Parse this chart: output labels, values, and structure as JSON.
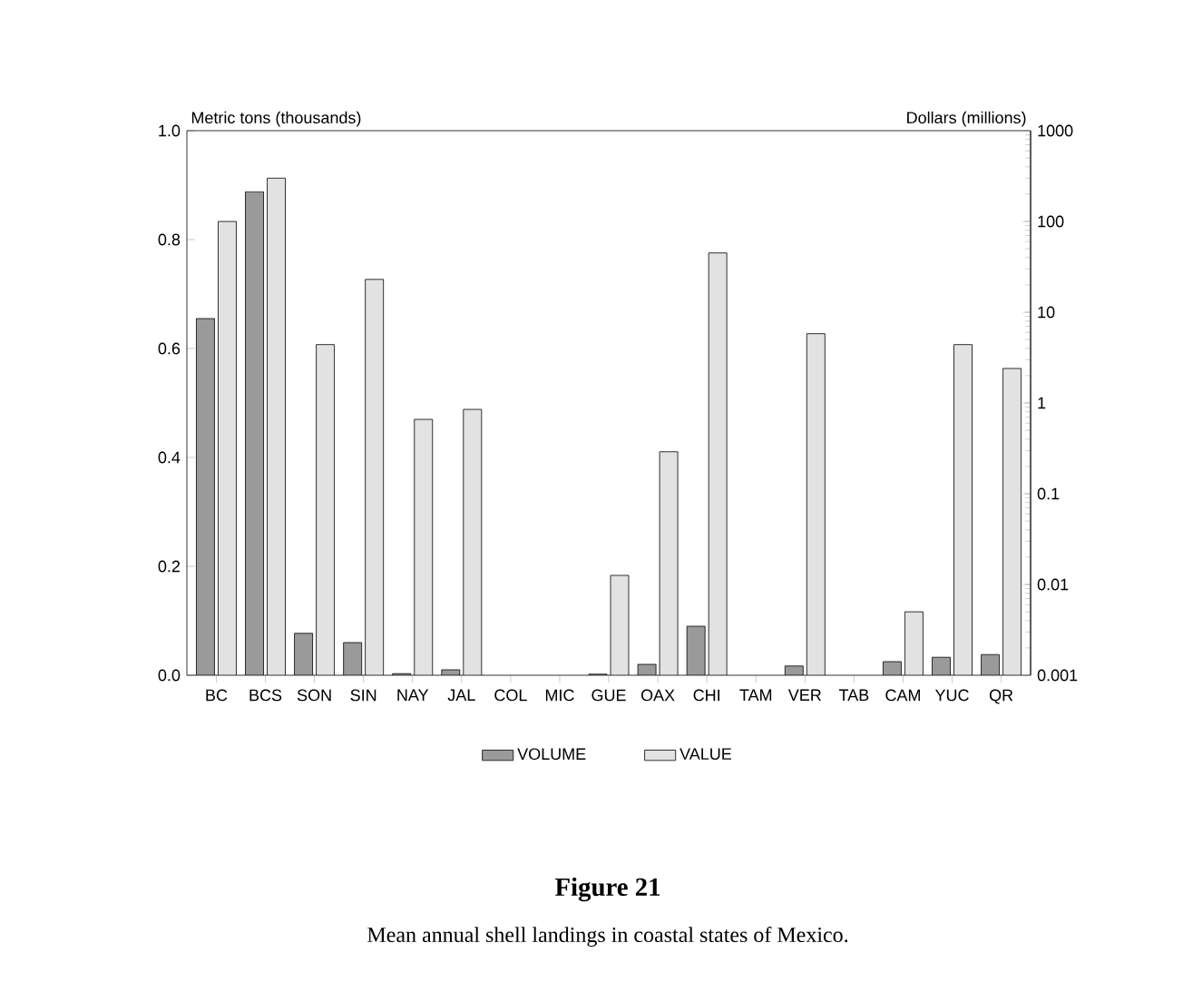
{
  "chart_data": {
    "type": "bar",
    "title": "Figure 21",
    "annotations": [
      "Mean annual shell landings in coastal states of Mexico."
    ],
    "ylabel": "Metric tons (thousands)",
    "y2label": "Dollars (millions)",
    "categories": [
      "BC",
      "BCS",
      "SON",
      "SIN",
      "NAY",
      "JAL",
      "COL",
      "MIC",
      "GUE",
      "OAX",
      "CHI",
      "TAM",
      "VER",
      "TAB",
      "CAM",
      "YUC",
      "QR"
    ],
    "series": [
      {
        "name": "VOLUME",
        "color": "#9a9a9a",
        "values": [
          0.655,
          0.888,
          0.077,
          0.06,
          0.003,
          0.01,
          null,
          null,
          0.002,
          0.02,
          0.09,
          null,
          0.017,
          null,
          0.025,
          0.033,
          0.038
        ]
      },
      {
        "name": "VALUE",
        "color": "#e2e2e2",
        "axis": "y2",
        "values": [
          100,
          300,
          4.4,
          23,
          0.66,
          0.85,
          null,
          null,
          0.0126,
          0.29,
          45,
          null,
          5.8,
          null,
          0.005,
          4.4,
          2.4
        ]
      }
    ],
    "ylim": [
      0,
      1
    ],
    "yticks": [
      {
        "value": 0,
        "label": "0.0"
      },
      {
        "value": 0.2,
        "label": "0.2"
      },
      {
        "value": 0.4,
        "label": "0.4"
      },
      {
        "value": 0.6,
        "label": "0.6"
      },
      {
        "value": 0.8,
        "label": "0.8"
      },
      {
        "value": 1,
        "label": "1.0"
      }
    ],
    "y2lim": [
      0.001,
      1000
    ],
    "y2ticks": [
      0.001,
      0.01,
      0.1,
      1,
      10,
      100,
      1000
    ],
    "log": "y2",
    "legend": "bottom"
  }
}
